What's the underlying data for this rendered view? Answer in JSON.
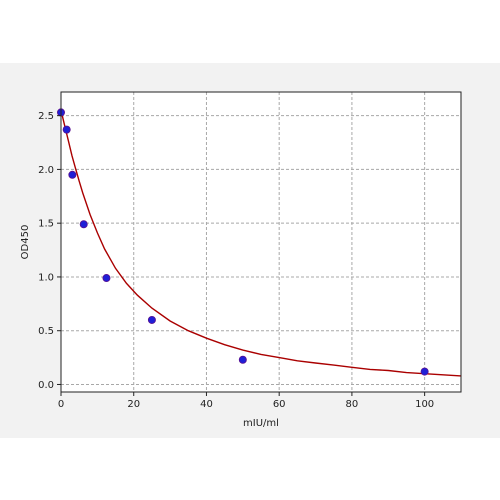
{
  "chart_data": {
    "type": "scatter",
    "title": "",
    "xlabel": "mIU/ml",
    "ylabel": "OD450",
    "xlim": [
      0,
      110
    ],
    "ylim": [
      -0.07,
      2.72
    ],
    "xticks": [
      "0",
      "20",
      "40",
      "60",
      "80",
      "100"
    ],
    "yticks": [
      "0.0",
      "0.5",
      "1.0",
      "1.5",
      "2.0",
      "2.5"
    ],
    "grid": true,
    "points": {
      "x": [
        0,
        1.5625,
        3.125,
        6.25,
        12.5,
        25,
        50,
        100
      ],
      "y": [
        2.53,
        2.37,
        1.95,
        1.49,
        0.99,
        0.6,
        0.23,
        0.12
      ]
    },
    "curve": {
      "x": [
        0,
        1,
        2,
        3,
        4,
        5,
        6,
        8,
        10,
        12,
        15,
        18,
        21,
        25,
        30,
        35,
        40,
        45,
        50,
        55,
        60,
        65,
        70,
        75,
        80,
        85,
        90,
        95,
        100,
        105,
        110
      ],
      "y": [
        2.55,
        2.41,
        2.27,
        2.13,
        2.01,
        1.89,
        1.78,
        1.58,
        1.41,
        1.26,
        1.08,
        0.94,
        0.83,
        0.71,
        0.59,
        0.5,
        0.43,
        0.37,
        0.32,
        0.28,
        0.25,
        0.22,
        0.2,
        0.18,
        0.16,
        0.14,
        0.13,
        0.11,
        0.1,
        0.09,
        0.08
      ]
    },
    "colors": {
      "curve": "#aa0000",
      "marker_fill": "#1f1fd6",
      "marker_edge": "#5a1090",
      "grid": "#a8a8a8",
      "plot_bg": "#ffffff",
      "frame_bg": "#f2f2f2"
    }
  }
}
